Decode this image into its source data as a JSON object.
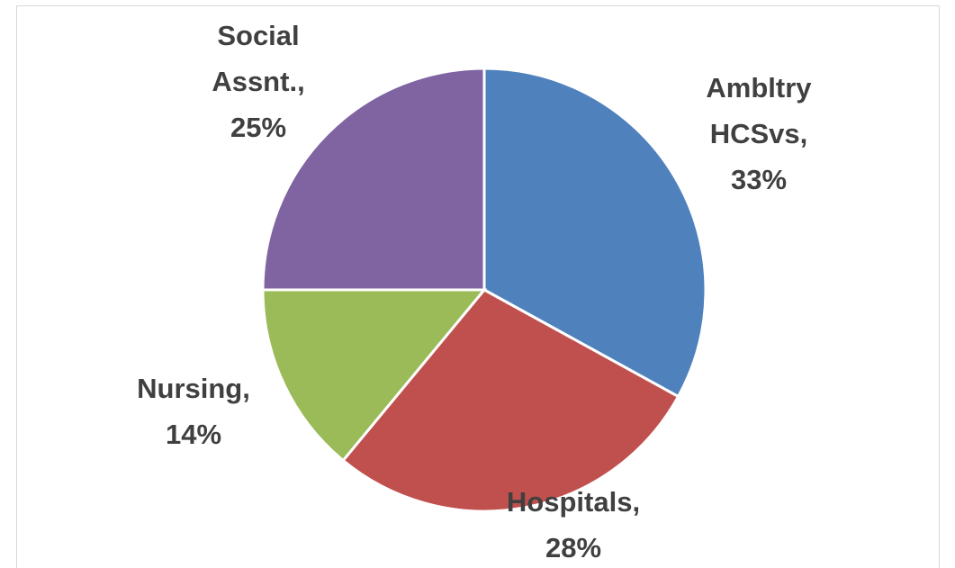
{
  "chart_data": {
    "type": "pie",
    "categories": [
      "Ambltry HCSvs",
      "Hospitals",
      "Nursing",
      "Social Assnt."
    ],
    "values": [
      33,
      28,
      14,
      25
    ],
    "value_labels": [
      "33%",
      "28%",
      "14%",
      "25%"
    ],
    "label_separator": ",",
    "colors": [
      "#4f81bd",
      "#c0504d",
      "#9bbb59",
      "#8064a2"
    ]
  }
}
